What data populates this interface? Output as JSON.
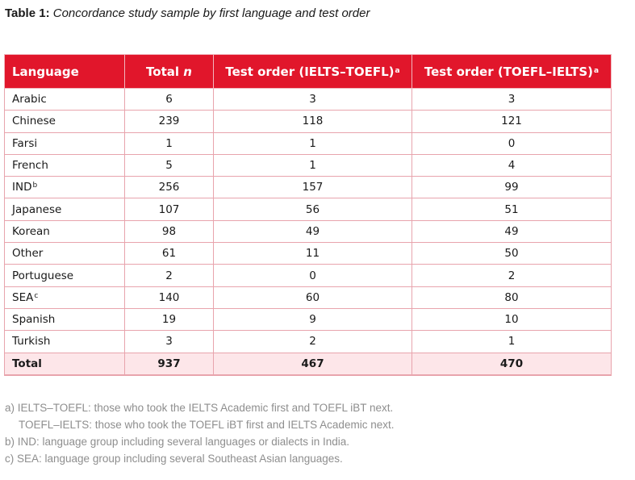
{
  "caption": {
    "label": "Table 1:",
    "text": "Concordance study sample by first language and test order"
  },
  "table": {
    "headers": {
      "language": "Language",
      "total_prefix": "Total ",
      "total_italic": "n",
      "ielts_toefl": "Test order (IELTS–TOEFL)",
      "ielts_toefl_sup": "a",
      "toefl_ielts": "Test order (TOEFL–IELTS)",
      "toefl_ielts_sup": "a"
    },
    "rows": [
      {
        "language": "Arabic",
        "sup": "",
        "total": "6",
        "ielts_toefl": "3",
        "toefl_ielts": "3"
      },
      {
        "language": "Chinese",
        "sup": "",
        "total": "239",
        "ielts_toefl": "118",
        "toefl_ielts": "121"
      },
      {
        "language": "Farsi",
        "sup": "",
        "total": "1",
        "ielts_toefl": "1",
        "toefl_ielts": "0"
      },
      {
        "language": "French",
        "sup": "",
        "total": "5",
        "ielts_toefl": "1",
        "toefl_ielts": "4"
      },
      {
        "language": "IND",
        "sup": "b",
        "total": "256",
        "ielts_toefl": "157",
        "toefl_ielts": "99"
      },
      {
        "language": "Japanese",
        "sup": "",
        "total": "107",
        "ielts_toefl": "56",
        "toefl_ielts": "51"
      },
      {
        "language": "Korean",
        "sup": "",
        "total": "98",
        "ielts_toefl": "49",
        "toefl_ielts": "49"
      },
      {
        "language": "Other",
        "sup": "",
        "total": "61",
        "ielts_toefl": "11",
        "toefl_ielts": "50"
      },
      {
        "language": "Portuguese",
        "sup": "",
        "total": "2",
        "ielts_toefl": "0",
        "toefl_ielts": "2"
      },
      {
        "language": "SEA",
        "sup": "c",
        "total": "140",
        "ielts_toefl": "60",
        "toefl_ielts": "80"
      },
      {
        "language": "Spanish",
        "sup": "",
        "total": "19",
        "ielts_toefl": "9",
        "toefl_ielts": "10"
      },
      {
        "language": "Turkish",
        "sup": "",
        "total": "3",
        "ielts_toefl": "2",
        "toefl_ielts": "1"
      }
    ],
    "total_row": {
      "language": "Total",
      "total": "937",
      "ielts_toefl": "467",
      "toefl_ielts": "470"
    }
  },
  "notes": {
    "a1": "a) IELTS–TOEFL: those who took the IELTS Academic first and TOEFL iBT next.",
    "a2": "TOEFL–IELTS: those who took the TOEFL iBT first and IELTS Academic next.",
    "b": "b) IND: language group including several languages or dialects in India.",
    "c": "c) SEA: language group including several Southeast Asian languages."
  },
  "colors": {
    "header_bg": "#e1162b",
    "total_row_bg": "#fde6e9",
    "border": "#e8a4ad",
    "note_text": "#8e8e8e"
  }
}
